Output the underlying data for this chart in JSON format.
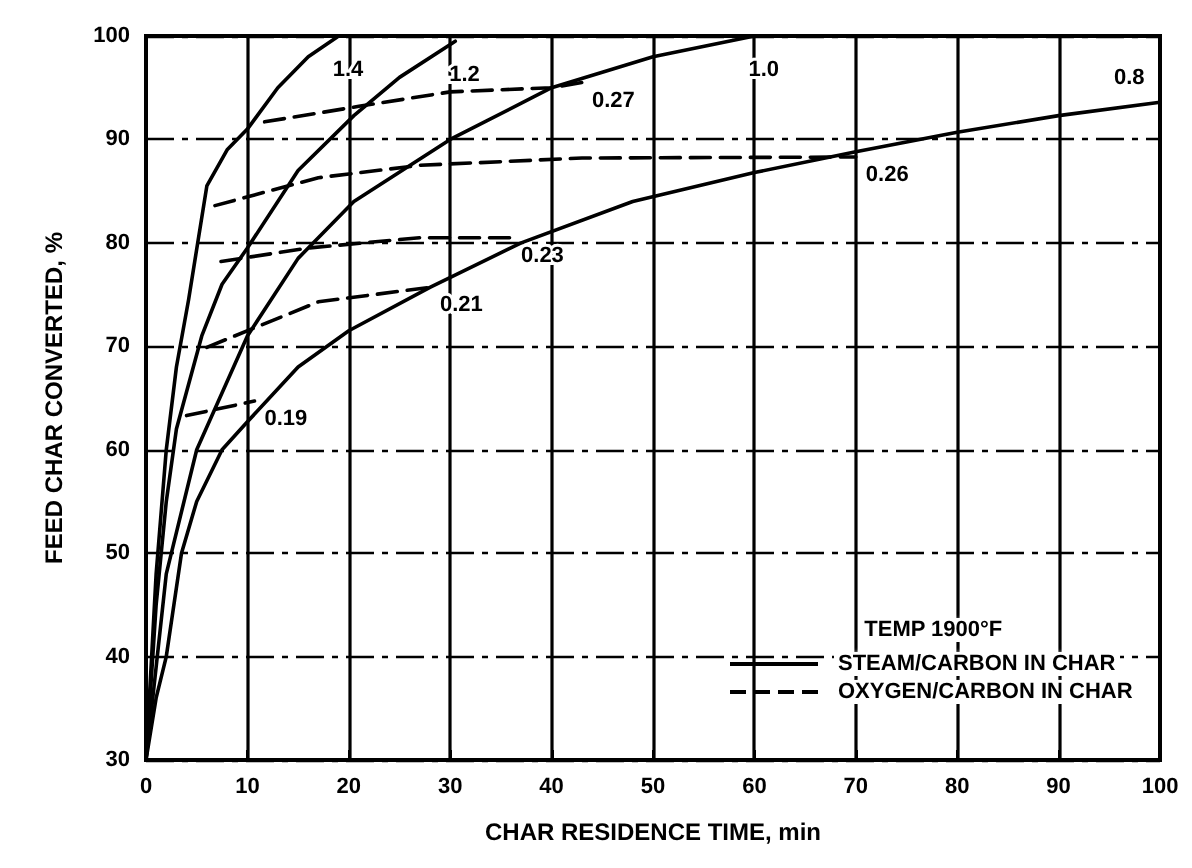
{
  "chart_data": {
    "type": "line",
    "xlabel": "CHAR RESIDENCE TIME, min",
    "ylabel": "FEED CHAR CONVERTED, %",
    "legend_title": "TEMP 1900°F",
    "grid": true,
    "marker": "none",
    "xlim": [
      0,
      100
    ],
    "xticks": [
      0,
      10,
      20,
      30,
      40,
      50,
      60,
      70,
      80,
      90,
      100
    ],
    "ylim": [
      30,
      100
    ],
    "yticks": [
      30,
      40,
      50,
      60,
      70,
      80,
      90,
      100
    ],
    "annotations": [
      "STEAM/CARBON IN CHAR",
      "OXYGEN/CARBON IN CHAR"
    ],
    "series": [
      {
        "name": "1.4",
        "color": "#000000",
        "line_style": "solid",
        "x": [
          0,
          1,
          2,
          3,
          4.2,
          6,
          8,
          10,
          13,
          16,
          19
        ],
        "values": [
          30,
          48,
          60,
          68,
          74.5,
          85.5,
          89,
          91,
          95,
          98,
          100
        ]
      },
      {
        "name": "1.2",
        "color": "#000000",
        "line_style": "solid",
        "x": [
          0,
          1,
          2,
          3,
          5.5,
          7.5,
          10,
          15,
          20.5,
          25,
          30.5
        ],
        "values": [
          30,
          45,
          55,
          62,
          71,
          76,
          79.5,
          87,
          92.3,
          96,
          99.5
        ]
      },
      {
        "name": "1.0",
        "color": "#000000",
        "line_style": "solid",
        "x": [
          0,
          2,
          5,
          10,
          15,
          20.5,
          30,
          40,
          50,
          60
        ],
        "values": [
          30,
          48,
          60,
          71,
          78.5,
          84,
          90,
          95,
          98,
          100
        ]
      },
      {
        "name": "0.8",
        "color": "#000000",
        "line_style": "solid",
        "x": [
          0,
          1,
          2,
          3.5,
          5,
          7.5,
          10,
          15,
          20,
          28,
          37,
          48,
          60,
          70,
          80,
          90,
          100
        ],
        "values": [
          30,
          36,
          40,
          50,
          55,
          60,
          62.7,
          68,
          71.5,
          75.7,
          80,
          84,
          86.8,
          88.8,
          90.7,
          92.3,
          93.6
        ]
      },
      {
        "name": "0.27",
        "color": "#000000",
        "line_style": "dashed",
        "x": [
          11.7,
          21,
          30,
          40,
          43
        ],
        "values": [
          91.7,
          93.2,
          94.6,
          95,
          95.5
        ]
      },
      {
        "name": "0.26",
        "color": "#000000",
        "line_style": "dashed",
        "x": [
          6.8,
          17,
          27,
          43,
          70
        ],
        "values": [
          83.6,
          86.3,
          87.5,
          88.2,
          88.3
        ]
      },
      {
        "name": "0.23",
        "color": "#000000",
        "line_style": "dashed",
        "x": [
          7.4,
          16,
          27,
          36
        ],
        "values": [
          78.2,
          79.5,
          80.5,
          80.5
        ]
      },
      {
        "name": "0.21",
        "color": "#000000",
        "line_style": "dashed",
        "x": [
          6,
          17,
          28
        ],
        "values": [
          69.9,
          74.3,
          75.7
        ]
      },
      {
        "name": "0.19",
        "color": "#000000",
        "line_style": "dashed",
        "x": [
          4,
          10.7
        ],
        "values": [
          63.3,
          64.7
        ]
      }
    ]
  }
}
